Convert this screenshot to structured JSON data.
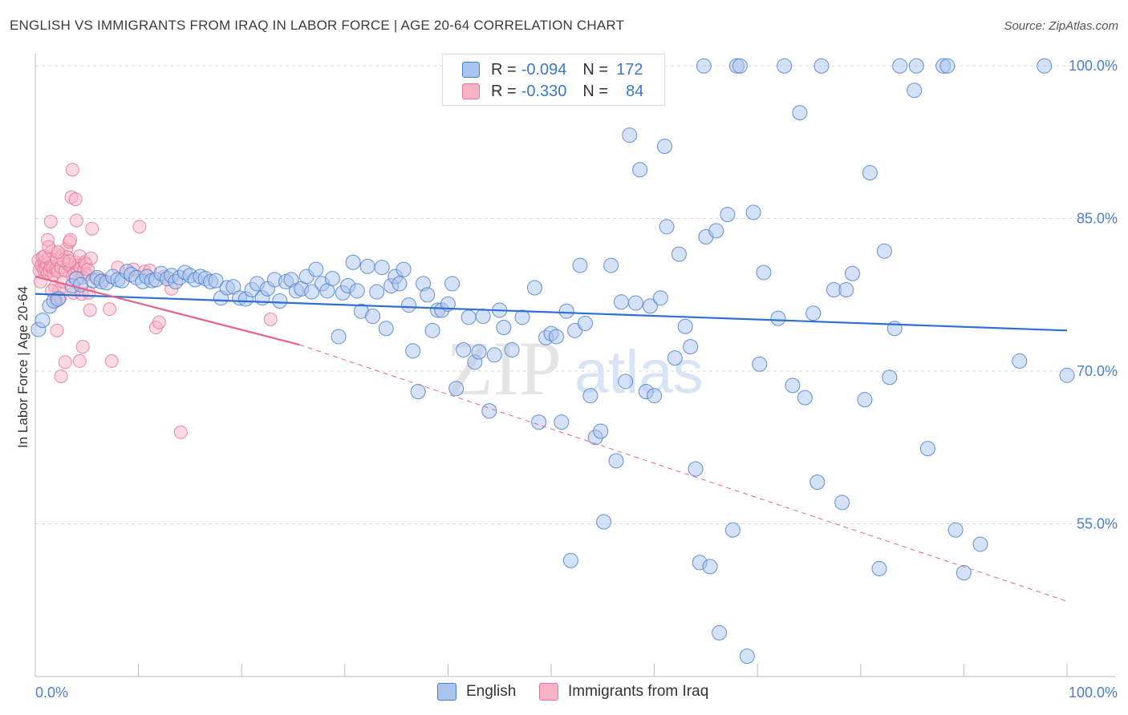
{
  "title": "ENGLISH VS IMMIGRANTS FROM IRAQ IN LABOR FORCE | AGE 20-64 CORRELATION CHART",
  "source": "Source: ZipAtlas.com",
  "watermark": {
    "zip": "ZIP",
    "atlas": "atlas"
  },
  "legend": {
    "english": {
      "r_label": "R =",
      "r_value": "-0.094",
      "n_label": "N =",
      "n_value": "172"
    },
    "iraq": {
      "r_label": "R =",
      "r_value": "-0.330",
      "n_label": "N =",
      "n_value": "84"
    }
  },
  "bottom_legend": {
    "english": "English",
    "iraq": "Immigrants from Iraq"
  },
  "colors": {
    "english_fill": "#a9c4ee",
    "english_stroke": "#4a7fd0",
    "english_line": "#2e6fd0",
    "iraq_fill": "#f6b3c6",
    "iraq_stroke": "#e8769a",
    "iraq_line": "#e8638d",
    "grid": "#d8d8d8",
    "tick_text": "#4a7fd0"
  },
  "chart_data": {
    "type": "scatter",
    "title": "ENGLISH VS IMMIGRANTS FROM IRAQ IN LABOR FORCE | AGE 20-64 CORRELATION CHART",
    "xlabel": "",
    "ylabel": "In Labor Force | Age 20-64",
    "xlim": [
      0,
      100
    ],
    "ylim": [
      40,
      101.2
    ],
    "x_tick_labels": [
      "0.0%",
      "100.0%"
    ],
    "y_ticks": [
      55,
      70,
      85,
      100
    ],
    "y_tick_labels": [
      "55.0%",
      "70.0%",
      "85.0%",
      "100.0%"
    ],
    "grid": true,
    "series": [
      {
        "name": "English",
        "trend": {
          "x": [
            0,
            100
          ],
          "y": [
            77.6,
            74.0
          ]
        },
        "points": [
          [
            0.3,
            74.1
          ],
          [
            0.7,
            75.0
          ],
          [
            1.4,
            76.4
          ],
          [
            1.8,
            76.9
          ],
          [
            2.2,
            77.1
          ],
          [
            3.6,
            78.4
          ],
          [
            4.0,
            79.1
          ],
          [
            4.4,
            78.5
          ],
          [
            5.6,
            78.9
          ],
          [
            6.0,
            79.2
          ],
          [
            6.4,
            78.8
          ],
          [
            6.9,
            78.7
          ],
          [
            7.5,
            79.3
          ],
          [
            8.0,
            79.0
          ],
          [
            8.4,
            78.9
          ],
          [
            8.9,
            79.8
          ],
          [
            9.3,
            79.5
          ],
          [
            9.8,
            79.2
          ],
          [
            10.4,
            78.8
          ],
          [
            10.8,
            79.3
          ],
          [
            11.3,
            78.9
          ],
          [
            11.7,
            79.0
          ],
          [
            12.2,
            79.6
          ],
          [
            12.8,
            79.1
          ],
          [
            13.2,
            79.4
          ],
          [
            13.6,
            78.8
          ],
          [
            14.0,
            79.2
          ],
          [
            14.5,
            79.7
          ],
          [
            15.0,
            79.4
          ],
          [
            15.5,
            79.0
          ],
          [
            16.0,
            79.3
          ],
          [
            16.5,
            79.1
          ],
          [
            17.0,
            78.8
          ],
          [
            17.5,
            78.9
          ],
          [
            18.0,
            77.2
          ],
          [
            18.6,
            78.2
          ],
          [
            19.2,
            78.3
          ],
          [
            19.8,
            77.2
          ],
          [
            20.4,
            77.1
          ],
          [
            21.0,
            78.0
          ],
          [
            21.5,
            78.6
          ],
          [
            22.0,
            77.2
          ],
          [
            22.5,
            78.1
          ],
          [
            23.2,
            79.0
          ],
          [
            23.7,
            76.9
          ],
          [
            24.3,
            78.8
          ],
          [
            24.8,
            79.0
          ],
          [
            25.3,
            77.9
          ],
          [
            25.8,
            78.1
          ],
          [
            26.3,
            79.3
          ],
          [
            26.8,
            77.8
          ],
          [
            27.2,
            80.0
          ],
          [
            27.8,
            78.6
          ],
          [
            28.3,
            77.9
          ],
          [
            28.8,
            79.1
          ],
          [
            29.4,
            73.4
          ],
          [
            29.8,
            77.7
          ],
          [
            30.3,
            78.4
          ],
          [
            30.8,
            80.7
          ],
          [
            31.2,
            77.9
          ],
          [
            31.6,
            75.9
          ],
          [
            32.2,
            80.3
          ],
          [
            32.7,
            75.4
          ],
          [
            33.1,
            77.8
          ],
          [
            33.6,
            80.2
          ],
          [
            34.0,
            74.2
          ],
          [
            34.5,
            78.4
          ],
          [
            34.9,
            79.3
          ],
          [
            35.3,
            78.6
          ],
          [
            35.7,
            80.0
          ],
          [
            36.2,
            76.5
          ],
          [
            36.6,
            72.0
          ],
          [
            37.1,
            68.0
          ],
          [
            37.6,
            78.6
          ],
          [
            38.0,
            77.5
          ],
          [
            38.5,
            74.0
          ],
          [
            39.0,
            76.0
          ],
          [
            39.4,
            76.0
          ],
          [
            40.0,
            76.6
          ],
          [
            40.4,
            78.6
          ],
          [
            40.8,
            68.3
          ],
          [
            41.5,
            72.1
          ],
          [
            42.0,
            75.3
          ],
          [
            42.6,
            70.9
          ],
          [
            43.0,
            71.9
          ],
          [
            43.4,
            75.4
          ],
          [
            44.0,
            66.1
          ],
          [
            44.5,
            71.6
          ],
          [
            45.0,
            76.0
          ],
          [
            45.4,
            74.3
          ],
          [
            46.2,
            72.1
          ],
          [
            47.2,
            75.3
          ],
          [
            48.4,
            78.2
          ],
          [
            48.8,
            65.0
          ],
          [
            49.5,
            73.3
          ],
          [
            50.0,
            73.7
          ],
          [
            50.5,
            73.4
          ],
          [
            51.0,
            65.0
          ],
          [
            51.5,
            75.9
          ],
          [
            51.9,
            51.4
          ],
          [
            52.3,
            74.0
          ],
          [
            52.8,
            80.4
          ],
          [
            53.3,
            74.7
          ],
          [
            53.8,
            67.6
          ],
          [
            54.3,
            63.5
          ],
          [
            54.8,
            64.1
          ],
          [
            55.1,
            55.2
          ],
          [
            55.8,
            80.4
          ],
          [
            56.3,
            61.2
          ],
          [
            56.8,
            76.8
          ],
          [
            57.2,
            69.0
          ],
          [
            57.6,
            93.2
          ],
          [
            58.2,
            76.7
          ],
          [
            58.6,
            89.8
          ],
          [
            59.2,
            68.0
          ],
          [
            59.6,
            76.4
          ],
          [
            60.0,
            67.6
          ],
          [
            60.6,
            77.2
          ],
          [
            61.0,
            92.1
          ],
          [
            61.2,
            84.2
          ],
          [
            62.0,
            71.3
          ],
          [
            62.4,
            81.5
          ],
          [
            63.0,
            74.4
          ],
          [
            63.5,
            72.4
          ],
          [
            64.0,
            60.4
          ],
          [
            64.4,
            51.2
          ],
          [
            64.8,
            100.0
          ],
          [
            65.0,
            83.2
          ],
          [
            65.4,
            50.8
          ],
          [
            66.0,
            83.8
          ],
          [
            66.3,
            44.3
          ],
          [
            67.1,
            85.4
          ],
          [
            67.6,
            54.4
          ],
          [
            68.0,
            100.0
          ],
          [
            68.3,
            100.0
          ],
          [
            69.0,
            42.0
          ],
          [
            69.6,
            85.6
          ],
          [
            70.2,
            70.7
          ],
          [
            70.6,
            79.7
          ],
          [
            72.0,
            75.2
          ],
          [
            72.6,
            100.0
          ],
          [
            73.4,
            68.6
          ],
          [
            74.1,
            95.4
          ],
          [
            74.6,
            67.4
          ],
          [
            75.4,
            75.7
          ],
          [
            75.8,
            59.1
          ],
          [
            76.2,
            100.0
          ],
          [
            77.4,
            78.0
          ],
          [
            78.2,
            57.1
          ],
          [
            78.6,
            78.0
          ],
          [
            79.2,
            79.6
          ],
          [
            80.4,
            67.2
          ],
          [
            80.9,
            89.5
          ],
          [
            81.8,
            50.6
          ],
          [
            82.3,
            81.8
          ],
          [
            82.8,
            69.4
          ],
          [
            83.3,
            74.2
          ],
          [
            83.8,
            100.0
          ],
          [
            85.2,
            97.6
          ],
          [
            85.4,
            100.0
          ],
          [
            86.5,
            62.4
          ],
          [
            88.0,
            100.0
          ],
          [
            88.4,
            100.0
          ],
          [
            89.2,
            54.4
          ],
          [
            90.0,
            50.2
          ],
          [
            91.6,
            53.0
          ],
          [
            95.4,
            71.0
          ],
          [
            97.8,
            100.0
          ],
          [
            100.0,
            69.6
          ]
        ]
      },
      {
        "name": "Immigrants from Iraq",
        "trend": {
          "x": [
            0,
            25.6
          ],
          "y": [
            79.3,
            72.6
          ]
        },
        "trend_dashed": {
          "x": [
            25.6,
            100
          ],
          "y": [
            72.6,
            47.4
          ]
        },
        "points": [
          [
            0.3,
            80.9
          ],
          [
            0.4,
            79.9
          ],
          [
            0.5,
            78.8
          ],
          [
            0.6,
            80.4
          ],
          [
            0.7,
            81.2
          ],
          [
            0.8,
            80.0
          ],
          [
            0.9,
            80.7
          ],
          [
            1.0,
            80.0
          ],
          [
            1.1,
            80.5
          ],
          [
            1.2,
            79.7
          ],
          [
            1.3,
            81.1
          ],
          [
            1.4,
            79.9
          ],
          [
            1.5,
            80.3
          ],
          [
            1.6,
            81.8
          ],
          [
            1.7,
            80.2
          ],
          [
            1.8,
            79.5
          ],
          [
            1.9,
            78.3
          ],
          [
            2.0,
            80.0
          ],
          [
            2.1,
            81.0
          ],
          [
            2.2,
            79.8
          ],
          [
            2.3,
            78.0
          ],
          [
            2.4,
            77.2
          ],
          [
            2.5,
            80.2
          ],
          [
            2.6,
            81.4
          ],
          [
            2.7,
            78.8
          ],
          [
            2.9,
            79.9
          ],
          [
            3.0,
            82.0
          ],
          [
            3.1,
            81.2
          ],
          [
            3.2,
            80.5
          ],
          [
            3.3,
            82.7
          ],
          [
            3.4,
            82.9
          ],
          [
            3.5,
            80.2
          ],
          [
            3.6,
            79.4
          ],
          [
            3.7,
            77.7
          ],
          [
            3.8,
            79.6
          ],
          [
            3.9,
            80.7
          ],
          [
            4.1,
            79.9
          ],
          [
            4.2,
            80.4
          ],
          [
            4.3,
            81.3
          ],
          [
            4.4,
            80.1
          ],
          [
            4.5,
            77.6
          ],
          [
            4.7,
            79.8
          ],
          [
            4.8,
            80.7
          ],
          [
            4.9,
            80.5
          ],
          [
            5.0,
            79.5
          ],
          [
            5.2,
            77.7
          ],
          [
            5.3,
            76.0
          ],
          [
            1.5,
            84.7
          ],
          [
            2.1,
            74.0
          ],
          [
            2.5,
            69.5
          ],
          [
            2.9,
            70.9
          ],
          [
            3.5,
            87.1
          ],
          [
            3.6,
            89.8
          ],
          [
            3.9,
            86.9
          ],
          [
            4.0,
            84.8
          ],
          [
            4.3,
            71.0
          ],
          [
            4.6,
            72.4
          ],
          [
            5.5,
            84.0
          ],
          [
            7.2,
            76.1
          ],
          [
            7.4,
            71.0
          ],
          [
            8.0,
            80.2
          ],
          [
            9.5,
            80.0
          ],
          [
            10.1,
            84.2
          ],
          [
            10.6,
            79.8
          ],
          [
            11.1,
            79.9
          ],
          [
            11.7,
            74.3
          ],
          [
            12.0,
            74.8
          ],
          [
            12.5,
            79.3
          ],
          [
            13.2,
            78.1
          ],
          [
            14.1,
            64.0
          ],
          [
            22.8,
            75.1
          ],
          [
            1.2,
            82.9
          ],
          [
            1.6,
            77.9
          ],
          [
            2.0,
            76.9
          ],
          [
            2.7,
            80.9
          ],
          [
            3.3,
            80.8
          ],
          [
            4.6,
            79.2
          ],
          [
            5.1,
            80.0
          ],
          [
            5.4,
            81.1
          ],
          [
            6.0,
            79.1
          ],
          [
            6.5,
            79.0
          ],
          [
            0.9,
            81.3
          ],
          [
            1.3,
            82.2
          ],
          [
            2.2,
            81.7
          ]
        ]
      }
    ]
  }
}
